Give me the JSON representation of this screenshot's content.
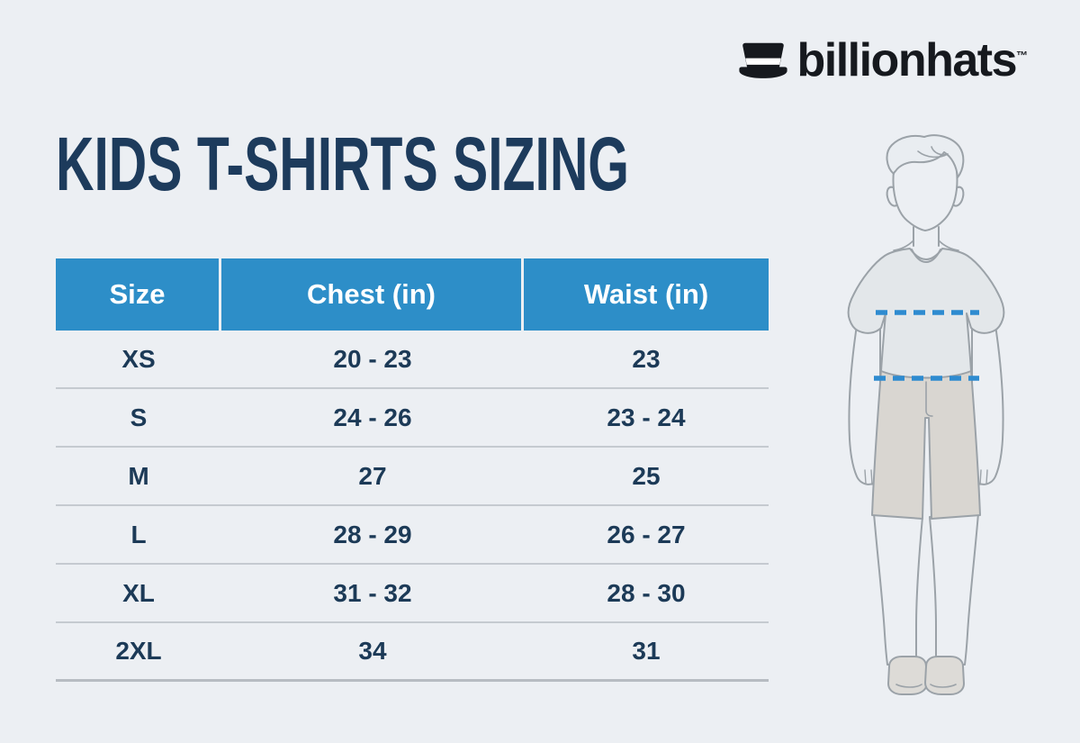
{
  "brand": {
    "name": "billionhats",
    "trademark": "TM",
    "icon": "top-hat-icon"
  },
  "title": "KIDS T-SHIRTS SIZING",
  "table": {
    "headers": [
      "Size",
      "Chest (in)",
      "Waist (in)"
    ],
    "rows": [
      [
        "XS",
        "20 - 23",
        "23"
      ],
      [
        "S",
        "24 - 26",
        "23 - 24"
      ],
      [
        "M",
        "27",
        "25"
      ],
      [
        "L",
        "28 - 29",
        "26 - 27"
      ],
      [
        "XL",
        "31 - 32",
        "28 - 30"
      ],
      [
        "2XL",
        "34",
        "31"
      ]
    ]
  },
  "chart_data": {
    "type": "table",
    "title": "KIDS T-SHIRTS SIZING",
    "columns": [
      "Size",
      "Chest (in)",
      "Waist (in)"
    ],
    "rows": [
      {
        "size": "XS",
        "chest_in": "20 - 23",
        "waist_in": "23"
      },
      {
        "size": "S",
        "chest_in": "24 - 26",
        "waist_in": "23 - 24"
      },
      {
        "size": "M",
        "chest_in": "27",
        "waist_in": "25"
      },
      {
        "size": "L",
        "chest_in": "28 - 29",
        "waist_in": "26 - 27"
      },
      {
        "size": "XL",
        "chest_in": "31 - 32",
        "waist_in": "28 - 30"
      },
      {
        "size": "2XL",
        "chest_in": "34",
        "waist_in": "31"
      }
    ]
  },
  "figure": {
    "name": "boy-measurement-illustration",
    "lines": [
      "chest-measure-line",
      "waist-measure-line"
    ]
  },
  "colors": {
    "background": "#ECEFF3",
    "header_blue": "#2D8EC8",
    "navy_text": "#1C3A57",
    "title_navy": "#1D3B5C",
    "divider_gray": "#C5CAD0",
    "dash_blue": "#2E8BD0",
    "outline_gray": "#9BA2A8",
    "logo_black": "#16191E"
  }
}
